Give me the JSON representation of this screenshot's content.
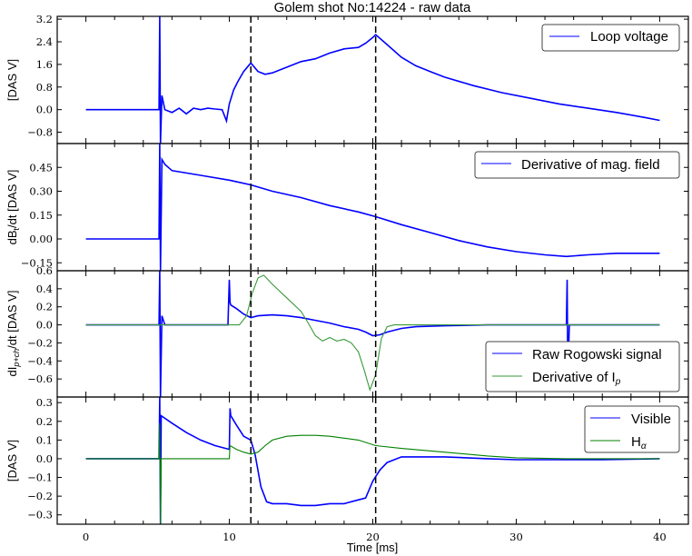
{
  "figure": {
    "title": "Golem shot No:14224 - raw data",
    "xlabel": "Time [ms]"
  },
  "colors": {
    "blue": "#0000ff",
    "green": "#008000",
    "green_light": "#3a9a3a",
    "axis": "#000000",
    "vline": "#000000"
  },
  "chart_data": [
    {
      "type": "line",
      "panel": 1,
      "title": "Golem shot No:14224 - raw data",
      "xlabel": "",
      "ylabel": "[DAS V]",
      "xlim": [
        -2,
        42
      ],
      "ylim": [
        -1.2,
        3.3
      ],
      "yticks": [
        3.2,
        2.4,
        1.6,
        0.8,
        0.0,
        -0.8
      ],
      "ytick_labels": [
        "3.2",
        "2.4",
        "1.6",
        "0.8",
        "0.0",
        "−0.8"
      ],
      "vlines": [
        11.5,
        20.2
      ],
      "legend": {
        "position": "upper right",
        "entries": [
          "Loop voltage"
        ]
      },
      "series": [
        {
          "name": "Loop voltage",
          "color": "blue",
          "x": [
            0,
            5.1,
            5.15,
            5.2,
            5.3,
            5.5,
            6,
            6.5,
            7,
            7.5,
            8,
            8.5,
            9,
            9.5,
            9.8,
            10,
            10.3,
            10.6,
            11,
            11.5,
            12,
            12.5,
            13,
            14,
            15,
            16,
            17,
            18,
            19,
            19.5,
            20,
            20.2,
            21,
            22,
            23,
            24,
            25,
            27,
            29,
            31,
            33,
            35,
            37,
            39,
            40
          ],
          "y": [
            0,
            0,
            3.3,
            -1.2,
            0.5,
            0.0,
            -0.1,
            0.05,
            -0.15,
            0.05,
            0.0,
            0.05,
            0.02,
            0.0,
            -0.4,
            0.2,
            0.7,
            1.0,
            1.35,
            1.65,
            1.35,
            1.25,
            1.3,
            1.5,
            1.7,
            1.8,
            2.0,
            2.15,
            2.2,
            2.35,
            2.55,
            2.65,
            2.3,
            1.85,
            1.55,
            1.35,
            1.15,
            0.85,
            0.6,
            0.4,
            0.2,
            0.05,
            -0.1,
            -0.28,
            -0.38
          ]
        }
      ]
    },
    {
      "type": "line",
      "panel": 2,
      "ylabel": "dB_t/dt [DAS V]",
      "xlim": [
        -2,
        42
      ],
      "ylim": [
        -0.2,
        0.6
      ],
      "yticks": [
        0.45,
        0.3,
        0.15,
        0.0,
        -0.15
      ],
      "ytick_labels": [
        "0.45",
        "0.30",
        "0.15",
        "0.00",
        "−0.15"
      ],
      "vlines": [
        11.5,
        20.2
      ],
      "legend": {
        "position": "upper right",
        "entries": [
          "Derivative of mag. field"
        ]
      },
      "series": [
        {
          "name": "Derivative of mag. field",
          "color": "blue",
          "x": [
            0,
            5.1,
            5.15,
            5.2,
            5.3,
            5.5,
            6,
            8,
            10,
            11.5,
            13,
            15,
            17,
            19,
            20.2,
            22,
            24,
            26,
            28,
            30,
            32,
            33.5,
            35,
            37,
            40
          ],
          "y": [
            0,
            0,
            0.6,
            -0.2,
            0.5,
            0.47,
            0.43,
            0.4,
            0.37,
            0.34,
            0.3,
            0.26,
            0.21,
            0.17,
            0.14,
            0.09,
            0.04,
            -0.01,
            -0.05,
            -0.08,
            -0.1,
            -0.11,
            -0.1,
            -0.09,
            -0.09
          ]
        }
      ]
    },
    {
      "type": "line",
      "panel": 3,
      "ylabel": "dI_{p+ch}/dt [DAS V]",
      "xlim": [
        -2,
        42
      ],
      "ylim": [
        -0.8,
        0.6
      ],
      "yticks": [
        0.6,
        0.4,
        0.2,
        0.0,
        -0.2,
        -0.4,
        -0.6
      ],
      "ytick_labels": [
        "0.6",
        "0.4",
        "0.2",
        "0.0",
        "−0.2",
        "−0.4",
        "−0.6"
      ],
      "vlines": [
        11.5,
        20.2
      ],
      "legend": {
        "position": "lower right",
        "entries": [
          "Raw Rogowski signal",
          "Derivative of I_p"
        ]
      },
      "series": [
        {
          "name": "Raw Rogowski signal",
          "color": "blue",
          "x": [
            0,
            5.1,
            5.15,
            5.2,
            5.3,
            5.5,
            8,
            9.9,
            10,
            10.05,
            10.1,
            10.5,
            11,
            11.5,
            12,
            13,
            14,
            15,
            16,
            17,
            18,
            19,
            19.5,
            20,
            20.5,
            21,
            22,
            23,
            25,
            28,
            33.5,
            33.55,
            33.6,
            33.7,
            37,
            40
          ],
          "y": [
            0,
            0,
            0.6,
            -0.8,
            0.1,
            0.0,
            0.0,
            0.0,
            0.5,
            0.25,
            0.22,
            0.18,
            0.12,
            0.08,
            0.1,
            0.11,
            0.1,
            0.08,
            0.05,
            0.02,
            -0.02,
            -0.05,
            -0.08,
            -0.12,
            -0.11,
            -0.08,
            -0.04,
            -0.02,
            -0.01,
            0.0,
            0.0,
            0.5,
            -0.6,
            0.0,
            0.0,
            0.0
          ]
        },
        {
          "name": "Derivative of I_p",
          "color": "green_light",
          "x": [
            0,
            10,
            10.7,
            11.2,
            11.6,
            12,
            12.4,
            13,
            14,
            15,
            15.5,
            16,
            16.5,
            17,
            17.5,
            18,
            18.5,
            19,
            19.4,
            19.8,
            20.2,
            20.6,
            21,
            21.5,
            40
          ],
          "y": [
            0,
            0,
            0.0,
            0.1,
            0.35,
            0.52,
            0.55,
            0.45,
            0.3,
            0.15,
            0.02,
            -0.12,
            -0.18,
            -0.14,
            -0.18,
            -0.16,
            -0.2,
            -0.3,
            -0.5,
            -0.72,
            -0.55,
            -0.15,
            -0.02,
            0.0,
            0.0
          ]
        }
      ]
    },
    {
      "type": "line",
      "panel": 4,
      "ylabel": "[DAS V]",
      "xlabel": "Time [ms]",
      "xlim": [
        -2,
        42
      ],
      "ylim": [
        -0.35,
        0.33
      ],
      "yticks": [
        0.3,
        0.2,
        0.1,
        0.0,
        -0.1,
        -0.2,
        -0.3
      ],
      "ytick_labels": [
        "0.3",
        "0.2",
        "0.1",
        "0.0",
        "−0.1",
        "−0.2",
        "−0.3"
      ],
      "xticks": [
        0,
        10,
        20,
        30,
        40
      ],
      "xtick_labels": [
        "0",
        "10",
        "20",
        "30",
        "40"
      ],
      "vlines": [
        11.5,
        20.2
      ],
      "legend": {
        "position": "upper right",
        "entries": [
          "Visible",
          "H_alpha"
        ]
      },
      "series": [
        {
          "name": "Visible",
          "color": "blue",
          "x": [
            0,
            5.1,
            5.15,
            5.2,
            5.25,
            6,
            7,
            8,
            9,
            10,
            10.05,
            10.1,
            10.5,
            11,
            11.5,
            11.8,
            12.2,
            12.6,
            13,
            14,
            15,
            16,
            17,
            18,
            19,
            19.5,
            20,
            20.5,
            21,
            22,
            23,
            25,
            28,
            30,
            33.5,
            36,
            40
          ],
          "y": [
            0,
            0,
            0.33,
            -0.35,
            0.23,
            0.19,
            0.14,
            0.1,
            0.07,
            0.05,
            0.27,
            0.23,
            0.18,
            0.12,
            0.1,
            0.02,
            -0.15,
            -0.23,
            -0.24,
            -0.24,
            -0.25,
            -0.25,
            -0.24,
            -0.24,
            -0.22,
            -0.21,
            -0.12,
            -0.06,
            -0.02,
            0.01,
            0.01,
            0.01,
            0.0,
            -0.005,
            -0.005,
            -0.005,
            0.0
          ]
        },
        {
          "name": "H_alpha",
          "color": "green",
          "x": [
            0,
            5.1,
            5.15,
            5.2,
            5.25,
            10,
            10.05,
            10.5,
            11,
            11.5,
            12,
            12.5,
            13,
            14,
            15,
            16,
            17,
            18,
            19,
            20.2,
            22,
            25,
            28,
            30,
            33.5,
            36,
            40
          ],
          "y": [
            0,
            0,
            0.19,
            -0.35,
            0.0,
            0.0,
            0.07,
            0.05,
            0.035,
            0.025,
            0.035,
            0.07,
            0.1,
            0.12,
            0.125,
            0.125,
            0.12,
            0.11,
            0.1,
            0.07,
            0.055,
            0.035,
            0.015,
            0.005,
            0.0,
            0.0,
            0.0
          ]
        }
      ]
    }
  ],
  "panels_ui": {
    "p1": {
      "ylabel": "[DAS V]",
      "legend": [
        "Loop voltage"
      ]
    },
    "p2": {
      "ylabel_main": "dB",
      "ylabel_sub": "t",
      "ylabel_rest": "/dt [DAS V]",
      "legend": [
        "Derivative of mag. field"
      ]
    },
    "p3": {
      "ylabel_main": "dI",
      "ylabel_sub": "p+ch",
      "ylabel_rest": "/dt [DAS V]",
      "legend_1": "Raw Rogowski signal",
      "legend_2_main": "Derivative of I",
      "legend_2_sub": "p"
    },
    "p4": {
      "ylabel": "[DAS V]",
      "legend_1": "Visible",
      "legend_2_main": "H",
      "legend_2_sub": "α"
    }
  }
}
